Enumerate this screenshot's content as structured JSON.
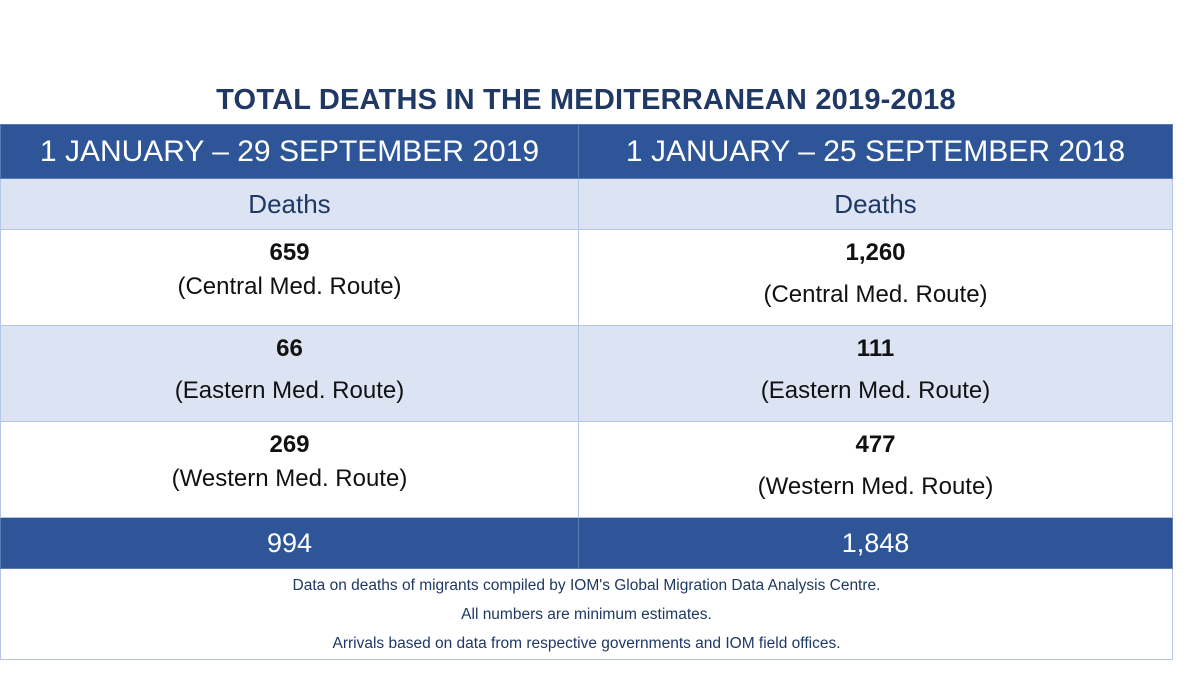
{
  "title": "TOTAL DEATHS IN THE MEDITERRANEAN 2019-2018",
  "columns": [
    {
      "period": "1 JANUARY – 29 SEPTEMBER 2019",
      "subheader": "Deaths",
      "rows": [
        {
          "value": "659",
          "route": "(Central Med. Route)"
        },
        {
          "value": "66",
          "route": "(Eastern Med. Route)"
        },
        {
          "value": "269",
          "route": "(Western Med. Route)"
        }
      ],
      "total": "994"
    },
    {
      "period": "1 JANUARY – 25 SEPTEMBER 2018",
      "subheader": "Deaths",
      "rows": [
        {
          "value": "1,260",
          "route": "(Central Med. Route)"
        },
        {
          "value": "111",
          "route": "(Eastern Med. Route)"
        },
        {
          "value": "477",
          "route": "(Western Med. Route)"
        }
      ],
      "total": "1,848"
    }
  ],
  "footnotes": [
    "Data on deaths of migrants compiled by IOM's Global Migration Data Analysis Centre.",
    "All numbers are minimum estimates.",
    "Arrivals based on data from respective governments and IOM field offices."
  ],
  "colors": {
    "header": "#2d5597",
    "title": "#1f3864",
    "alt_row": "#dce4f4"
  }
}
